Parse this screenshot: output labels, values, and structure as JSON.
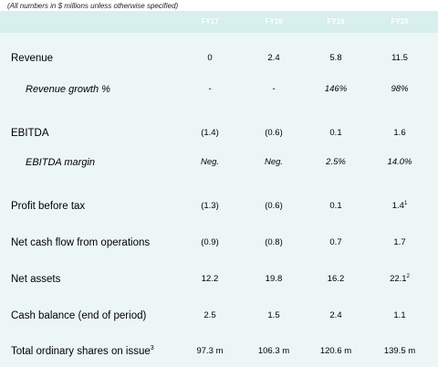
{
  "note": "(All numbers in $ millions unless otherwise specified)",
  "columns": [
    "FY17",
    "FY18",
    "FY19",
    "FY20"
  ],
  "rows": [
    {
      "label": "Revenue",
      "values": [
        "0",
        "2.4",
        "5.8",
        "11.5"
      ]
    },
    {
      "label": "Revenue growth %",
      "values": [
        "-",
        "-",
        "146%",
        "98%"
      ]
    },
    {
      "label": "EBITDA",
      "values": [
        "(1.4)",
        "(0.6)",
        "0.1",
        "1.6"
      ]
    },
    {
      "label": "EBITDA margin",
      "values": [
        "Neg.",
        "Neg.",
        "2.5%",
        "14.0%"
      ]
    },
    {
      "label": "Profit before tax",
      "values": [
        "(1.3)",
        "(0.6)",
        "0.1",
        "1.4"
      ],
      "footnote4": "1"
    },
    {
      "label": "Net cash flow from operations",
      "values": [
        "(0.9)",
        "(0.8)",
        "0.7",
        "1.7"
      ]
    },
    {
      "label": "Net assets",
      "values": [
        "12.2",
        "19.8",
        "16.2",
        "22.1"
      ],
      "footnote4": "2"
    },
    {
      "label": "Cash balance (end of period)",
      "values": [
        "2.5",
        "1.5",
        "2.4",
        "1.1"
      ]
    },
    {
      "label": "Total ordinary shares on issue",
      "label_footnote": "3",
      "values": [
        "97.3 m",
        "106.3 m",
        "120.6 m",
        "139.5 m"
      ]
    }
  ]
}
